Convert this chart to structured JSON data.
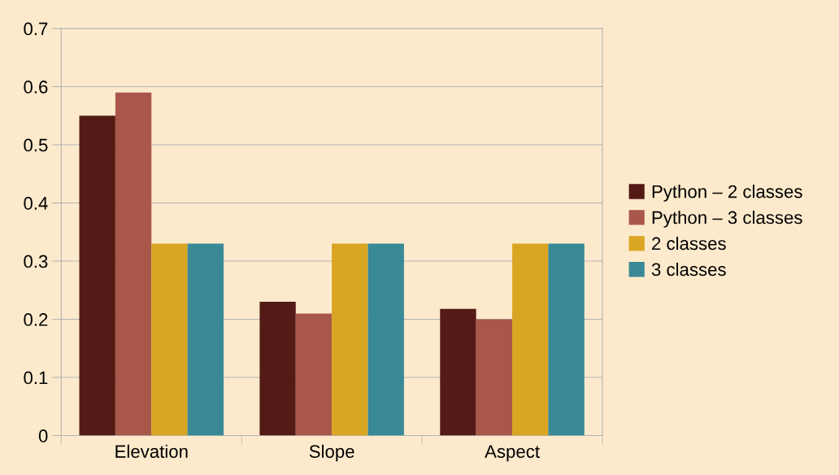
{
  "chart_data": {
    "type": "bar",
    "categories": [
      "Elevation",
      "Slope",
      "Aspect"
    ],
    "series": [
      {
        "name": "Python – 2 classes",
        "color": "#541a15",
        "values": [
          0.55,
          0.23,
          0.218
        ]
      },
      {
        "name": "Python – 3 classes",
        "color": "#a9574a",
        "values": [
          0.59,
          0.21,
          0.2
        ]
      },
      {
        "name": "2 classes",
        "color": "#daa522",
        "values": [
          0.33,
          0.33,
          0.33
        ]
      },
      {
        "name": "3 classes",
        "color": "#3a8996",
        "values": [
          0.33,
          0.33,
          0.33
        ]
      }
    ],
    "ylim": [
      0,
      0.7
    ],
    "yticks": [
      {
        "value": 0,
        "label": "0"
      },
      0.1,
      0.2,
      0.3,
      0.4,
      0.5,
      0.6,
      0.7
    ],
    "grid": "y",
    "legend": "right"
  }
}
